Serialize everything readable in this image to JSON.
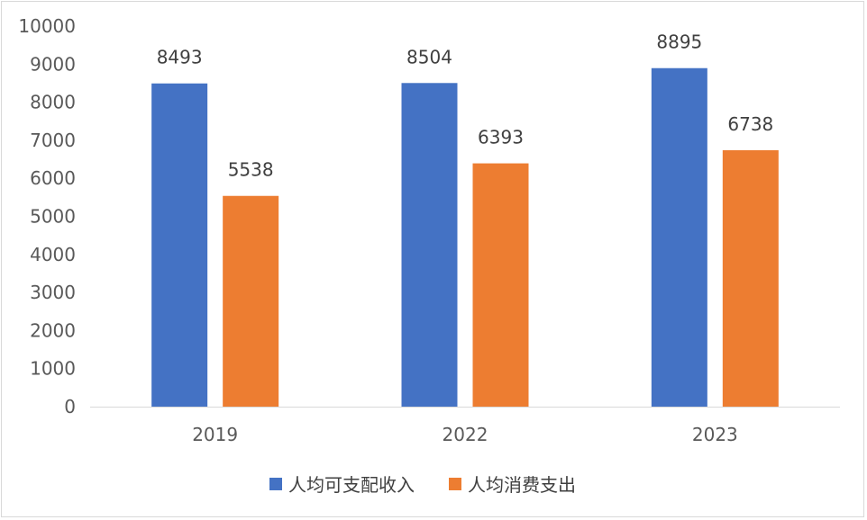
{
  "chart_data": {
    "type": "bar",
    "title": "",
    "xlabel": "",
    "ylabel": "",
    "categories": [
      "2019",
      "2022",
      "2023"
    ],
    "series": [
      {
        "name": "人均可支配收入",
        "color": "#4472C4",
        "values": [
          8493,
          8504,
          8895
        ]
      },
      {
        "name": "人均消费支出",
        "color": "#ED7D31",
        "values": [
          5538,
          6393,
          6738
        ]
      }
    ],
    "ylim": [
      0,
      10000
    ],
    "yticks": [
      "0",
      "1000",
      "2000",
      "3000",
      "4000",
      "5000",
      "6000",
      "7000",
      "8000",
      "9000",
      "10000"
    ],
    "data_labels": [
      [
        "8493",
        "8504",
        "8895"
      ],
      [
        "5538",
        "6393",
        "6738"
      ]
    ],
    "grid": false,
    "legend_position": "bottom",
    "axis_color": "#d9d9d9"
  }
}
